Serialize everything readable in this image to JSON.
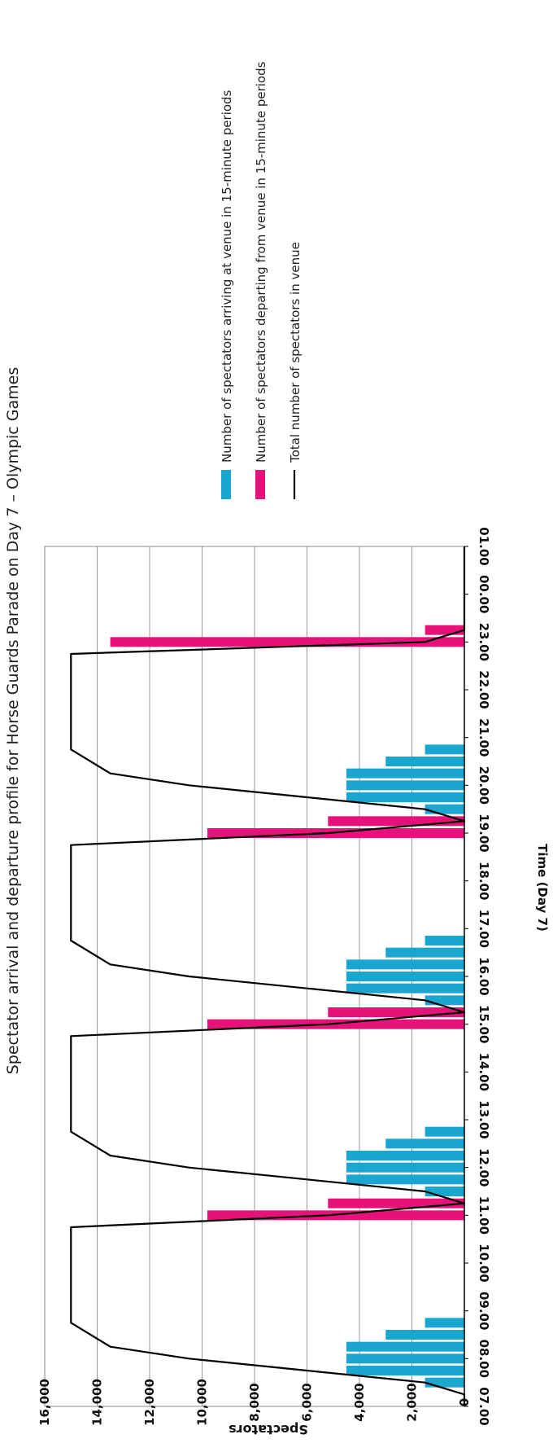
{
  "chart_data": {
    "type": "bar",
    "orientation": "rotated-90-clockwise",
    "title": "Spectator arrival and departure profile for Horse Guards Parade on Day 7 – Olympic Games",
    "xlabel": "Time (Day 7)",
    "ylabel": "Spectators",
    "ylim": [
      0,
      16000
    ],
    "yticks": [
      "0",
      "2,000",
      "4,000",
      "6,000",
      "8,000",
      "10,000",
      "12,000",
      "14,000",
      "16,000"
    ],
    "xlim": [
      "07.00",
      "01.00"
    ],
    "xticks": [
      "07.00",
      "08.00",
      "09.00",
      "10.00",
      "11.00",
      "12.00",
      "13.00",
      "14.00",
      "15.00",
      "16.00",
      "17.00",
      "18.00",
      "19.00",
      "20.00",
      "21.00",
      "22.00",
      "23.00",
      "00.00",
      "01.00"
    ],
    "grid": true,
    "legend_position": "right",
    "colors": {
      "arrivals": "#1AA6CF",
      "departures": "#E5127A",
      "total": "#000000",
      "grid": "#9a9a9a"
    },
    "series": [
      {
        "name": "Number of spectators arriving at venue in 15-minute periods",
        "kind": "bar",
        "points": [
          {
            "time": "07.30",
            "value": 1500
          },
          {
            "time": "07.45",
            "value": 4500
          },
          {
            "time": "08.00",
            "value": 4500
          },
          {
            "time": "08.15",
            "value": 4500
          },
          {
            "time": "08.30",
            "value": 3000
          },
          {
            "time": "08.45",
            "value": 1500
          },
          {
            "time": "11.30",
            "value": 1500
          },
          {
            "time": "11.45",
            "value": 4500
          },
          {
            "time": "12.00",
            "value": 4500
          },
          {
            "time": "12.15",
            "value": 4500
          },
          {
            "time": "12.30",
            "value": 3000
          },
          {
            "time": "12.45",
            "value": 1500
          },
          {
            "time": "15.30",
            "value": 1500
          },
          {
            "time": "15.45",
            "value": 4500
          },
          {
            "time": "16.00",
            "value": 4500
          },
          {
            "time": "16.15",
            "value": 4500
          },
          {
            "time": "16.30",
            "value": 3000
          },
          {
            "time": "16.45",
            "value": 1500
          },
          {
            "time": "19.30",
            "value": 1500
          },
          {
            "time": "19.45",
            "value": 4500
          },
          {
            "time": "20.00",
            "value": 4500
          },
          {
            "time": "20.15",
            "value": 4500
          },
          {
            "time": "20.30",
            "value": 3000
          },
          {
            "time": "20.45",
            "value": 1500
          }
        ]
      },
      {
        "name": "Number of spectators departing from venue in 15-minute periods",
        "kind": "bar",
        "points": [
          {
            "time": "11.00",
            "value": 9800
          },
          {
            "time": "11.15",
            "value": 5200
          },
          {
            "time": "15.00",
            "value": 9800
          },
          {
            "time": "15.15",
            "value": 5200
          },
          {
            "time": "19.00",
            "value": 9800
          },
          {
            "time": "19.15",
            "value": 5200
          },
          {
            "time": "23.00",
            "value": 13500
          },
          {
            "time": "23.15",
            "value": 1500
          }
        ]
      },
      {
        "name": "Total number of spectators in venue",
        "kind": "line",
        "points": [
          {
            "time": "07.00",
            "value": 0
          },
          {
            "time": "07.15",
            "value": 0
          },
          {
            "time": "07.30",
            "value": 1500
          },
          {
            "time": "07.45",
            "value": 6000
          },
          {
            "time": "08.00",
            "value": 10500
          },
          {
            "time": "08.15",
            "value": 13500
          },
          {
            "time": "08.45",
            "value": 15000
          },
          {
            "time": "10.45",
            "value": 15000
          },
          {
            "time": "11.00",
            "value": 5200
          },
          {
            "time": "11.15",
            "value": 0
          },
          {
            "time": "11.30",
            "value": 1500
          },
          {
            "time": "11.45",
            "value": 6000
          },
          {
            "time": "12.00",
            "value": 10500
          },
          {
            "time": "12.15",
            "value": 13500
          },
          {
            "time": "12.45",
            "value": 15000
          },
          {
            "time": "14.45",
            "value": 15000
          },
          {
            "time": "15.00",
            "value": 5200
          },
          {
            "time": "15.15",
            "value": 0
          },
          {
            "time": "15.30",
            "value": 1500
          },
          {
            "time": "15.45",
            "value": 6000
          },
          {
            "time": "16.00",
            "value": 10500
          },
          {
            "time": "16.15",
            "value": 13500
          },
          {
            "time": "16.45",
            "value": 15000
          },
          {
            "time": "18.45",
            "value": 15000
          },
          {
            "time": "19.00",
            "value": 5200
          },
          {
            "time": "19.15",
            "value": 0
          },
          {
            "time": "19.30",
            "value": 1500
          },
          {
            "time": "19.45",
            "value": 6000
          },
          {
            "time": "20.00",
            "value": 10500
          },
          {
            "time": "20.15",
            "value": 13500
          },
          {
            "time": "20.45",
            "value": 15000
          },
          {
            "time": "22.45",
            "value": 15000
          },
          {
            "time": "23.00",
            "value": 1500
          },
          {
            "time": "23.15",
            "value": 0
          },
          {
            "time": "01.00",
            "value": 0
          }
        ]
      }
    ]
  }
}
